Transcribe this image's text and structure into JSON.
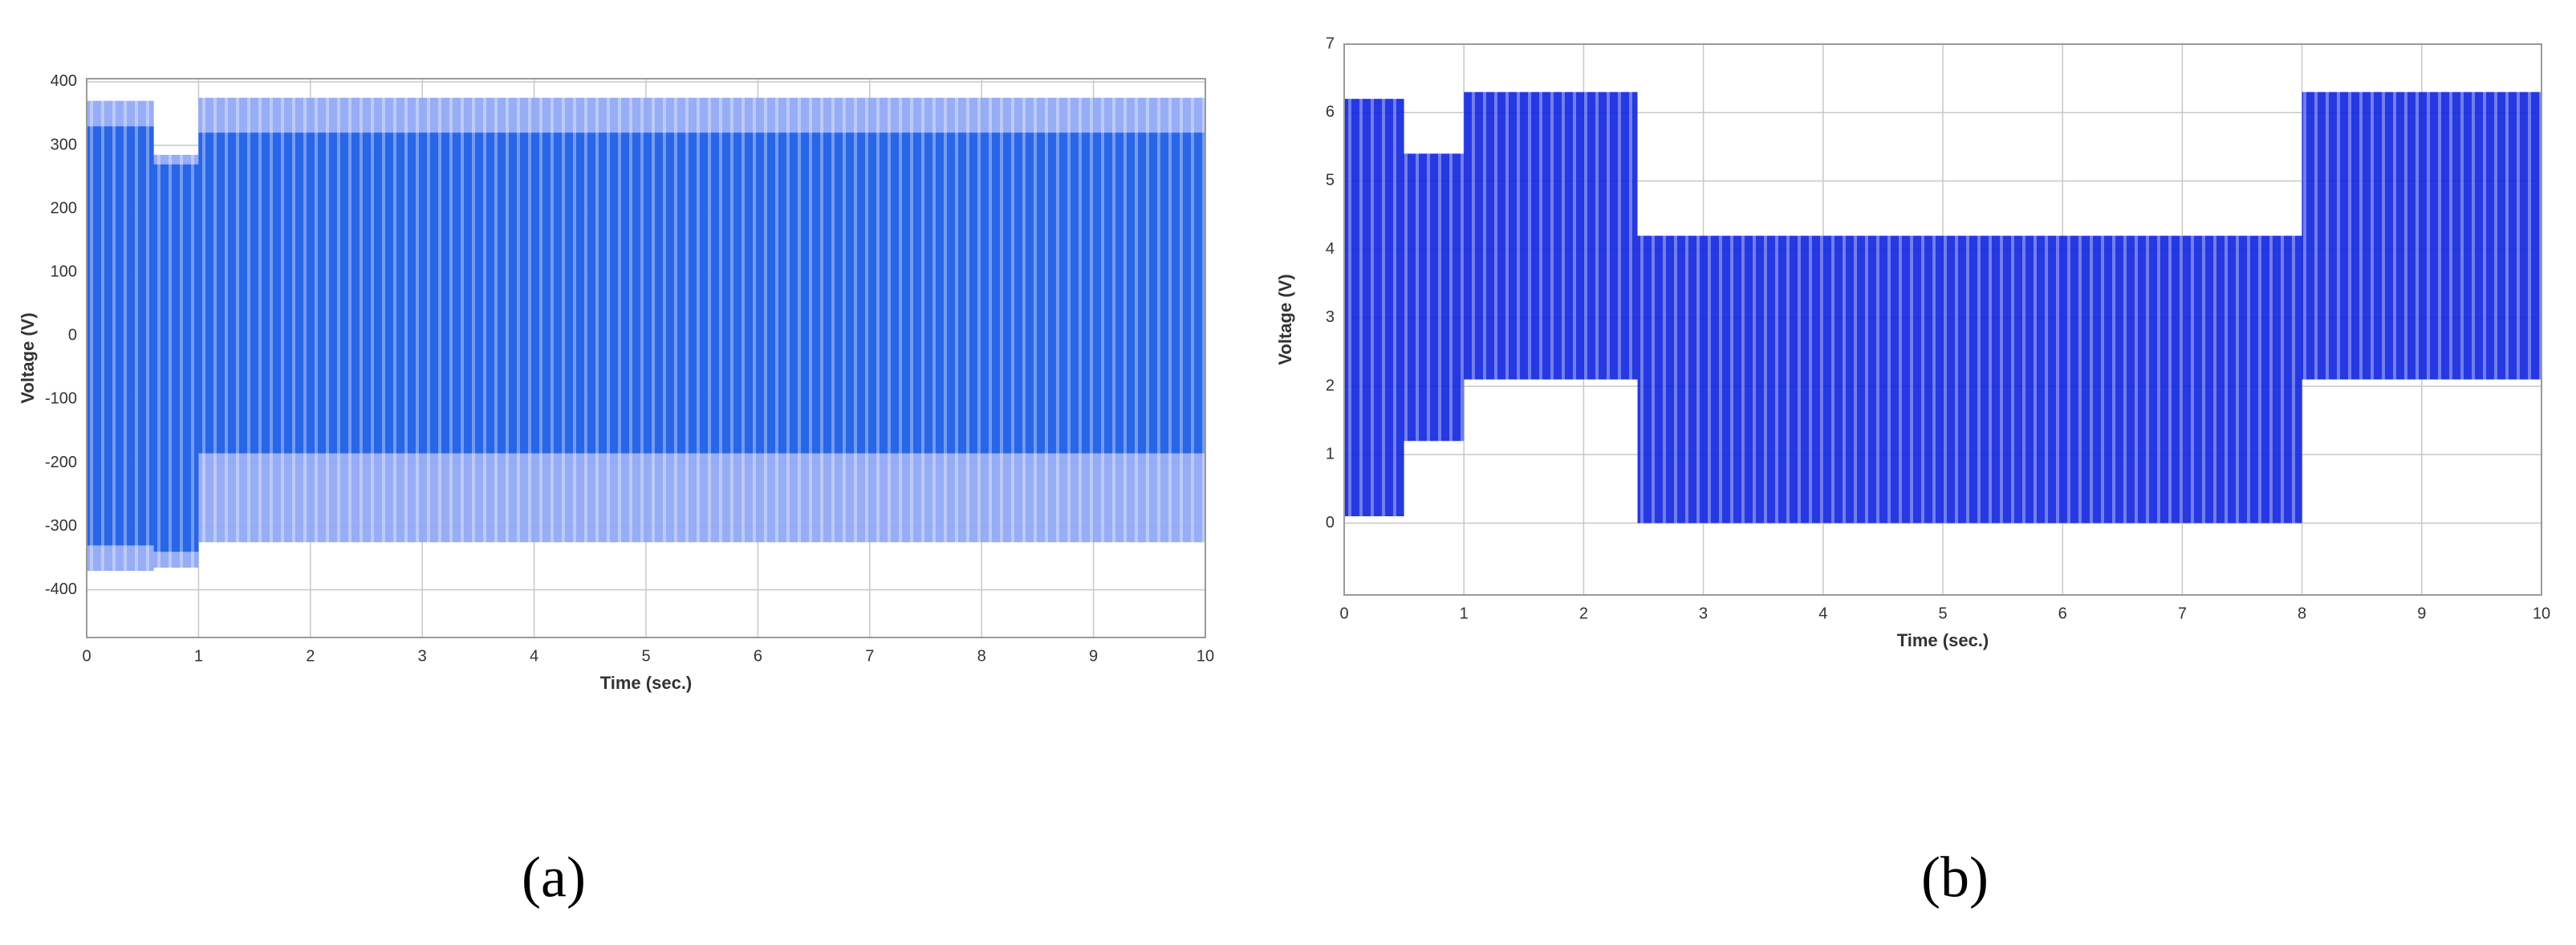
{
  "chart_data": [
    {
      "type": "band",
      "label": "(a)",
      "x_label": "Time (sec.)",
      "y_label": "Voltage (V)",
      "xlim": [
        0,
        10
      ],
      "xticks": [
        0,
        1,
        2,
        3,
        4,
        5,
        6,
        7,
        8,
        9,
        10
      ],
      "ylim": [
        -475,
        405
      ],
      "yticks": [
        -400,
        -300,
        -200,
        -100,
        0,
        100,
        200,
        300,
        400
      ],
      "grid": true,
      "series": [
        {
          "color": "#8ea6f4",
          "x": [
            0,
            0.6,
            0.6,
            1,
            1,
            10
          ],
          "upper": [
            370,
            370,
            285,
            285,
            375,
            375
          ],
          "lower": [
            -370,
            -370,
            -365,
            -365,
            -325,
            -325
          ]
        },
        {
          "color": "#1f5fe6",
          "x": [
            0,
            0.6,
            0.6,
            1,
            1,
            10
          ],
          "upper": [
            330,
            330,
            270,
            270,
            320,
            320
          ],
          "lower": [
            -330,
            -330,
            -340,
            -340,
            -185,
            -185
          ]
        }
      ]
    },
    {
      "type": "band",
      "label": "(b)",
      "x_label": "Time (sec.)",
      "y_label": "Voltage (V)",
      "xlim": [
        0,
        10
      ],
      "xticks": [
        0,
        1,
        2,
        3,
        4,
        5,
        6,
        7,
        8,
        9,
        10
      ],
      "ylim": [
        -1.05,
        7
      ],
      "yticks": [
        0,
        1,
        2,
        3,
        4,
        5,
        6,
        7
      ],
      "grid": true,
      "series": [
        {
          "color": "#1227e0",
          "x": [
            0,
            0.5,
            0.5,
            1,
            1,
            2.45,
            2.45,
            8,
            8,
            10
          ],
          "upper": [
            6.2,
            6.2,
            5.4,
            5.4,
            6.3,
            6.3,
            4.2,
            4.2,
            6.3,
            6.3
          ],
          "lower": [
            0.1,
            0.1,
            1.2,
            1.2,
            2.1,
            2.1,
            0,
            0,
            2.1,
            2.1
          ]
        }
      ]
    }
  ]
}
